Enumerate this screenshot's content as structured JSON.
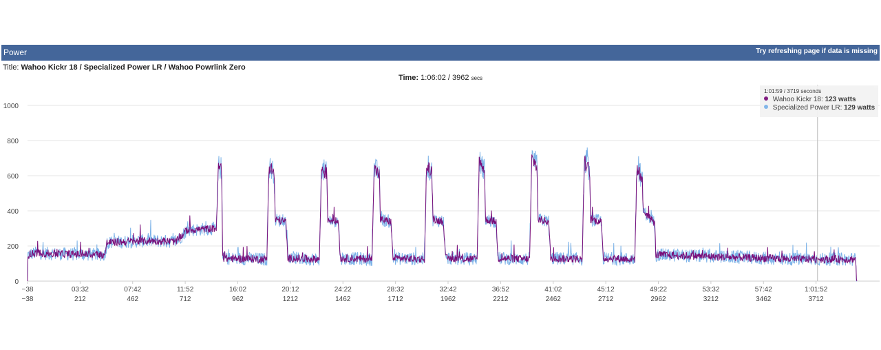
{
  "header": {
    "title": "Power",
    "note": "Try refreshing page if data is missing"
  },
  "ride": {
    "title_label": "Title:",
    "title_value": "Wahoo Kickr 18 / Specialized Power LR / Wahoo Powrlink Zero"
  },
  "time": {
    "label": "Time:",
    "value": "1:06:02",
    "separator": "/",
    "seconds": "3962",
    "unit": "secs"
  },
  "tooltip": {
    "time": "1:01:59",
    "seconds_text": "3719 seconds",
    "rows": [
      {
        "name": "Wahoo Kickr 18",
        "value": "123 watts",
        "color": "#7a0f7a"
      },
      {
        "name": "Specialized Power LR",
        "value": "129 watts",
        "color": "#7db3e8"
      }
    ]
  },
  "chart_data": {
    "type": "line",
    "ylim": [
      0,
      1000
    ],
    "xlim": [
      -38,
      3962
    ],
    "y_ticks": [
      0,
      200,
      400,
      600,
      800,
      1000
    ],
    "x_ticks": [
      {
        "sec": -38,
        "clock": "−38",
        "secs": "−38"
      },
      {
        "sec": 212,
        "clock": "03:32",
        "secs": "212"
      },
      {
        "sec": 462,
        "clock": "07:42",
        "secs": "462"
      },
      {
        "sec": 712,
        "clock": "11:52",
        "secs": "712"
      },
      {
        "sec": 962,
        "clock": "16:02",
        "secs": "962"
      },
      {
        "sec": 1212,
        "clock": "20:12",
        "secs": "1212"
      },
      {
        "sec": 1462,
        "clock": "24:22",
        "secs": "1462"
      },
      {
        "sec": 1712,
        "clock": "28:32",
        "secs": "1712"
      },
      {
        "sec": 1962,
        "clock": "32:42",
        "secs": "1962"
      },
      {
        "sec": 2212,
        "clock": "36:52",
        "secs": "2212"
      },
      {
        "sec": 2462,
        "clock": "41:02",
        "secs": "2462"
      },
      {
        "sec": 2712,
        "clock": "45:12",
        "secs": "2712"
      },
      {
        "sec": 2962,
        "clock": "49:22",
        "secs": "2962"
      },
      {
        "sec": 3212,
        "clock": "53:32",
        "secs": "3212"
      },
      {
        "sec": 3462,
        "clock": "57:42",
        "secs": "3462"
      },
      {
        "sec": 3712,
        "clock": "1:01:52",
        "secs": "3712"
      }
    ],
    "crosshair_sec": 3719,
    "series": [
      {
        "name": "Wahoo Kickr 18",
        "color": "#7a0f7a"
      },
      {
        "name": "Specialized Power LR",
        "color": "#7db3e8"
      }
    ],
    "profile": [
      [
        -38,
        0
      ],
      [
        -36,
        150
      ],
      [
        0,
        160
      ],
      [
        100,
        155
      ],
      [
        330,
        150
      ],
      [
        340,
        220
      ],
      [
        550,
        230
      ],
      [
        670,
        225
      ],
      [
        720,
        290
      ],
      [
        860,
        300
      ],
      [
        870,
        650
      ],
      [
        885,
        640
      ],
      [
        890,
        130
      ],
      [
        1100,
        125
      ],
      [
        1110,
        650
      ],
      [
        1135,
        620
      ],
      [
        1140,
        350
      ],
      [
        1190,
        340
      ],
      [
        1200,
        130
      ],
      [
        1350,
        125
      ],
      [
        1360,
        640
      ],
      [
        1385,
        610
      ],
      [
        1390,
        350
      ],
      [
        1440,
        340
      ],
      [
        1450,
        130
      ],
      [
        1600,
        125
      ],
      [
        1610,
        640
      ],
      [
        1635,
        610
      ],
      [
        1640,
        350
      ],
      [
        1690,
        340
      ],
      [
        1700,
        130
      ],
      [
        1850,
        125
      ],
      [
        1860,
        660
      ],
      [
        1885,
        620
      ],
      [
        1890,
        350
      ],
      [
        1940,
        340
      ],
      [
        1950,
        130
      ],
      [
        2100,
        125
      ],
      [
        2110,
        680
      ],
      [
        2135,
        640
      ],
      [
        2140,
        350
      ],
      [
        2190,
        340
      ],
      [
        2200,
        130
      ],
      [
        2350,
        125
      ],
      [
        2360,
        700
      ],
      [
        2385,
        650
      ],
      [
        2390,
        350
      ],
      [
        2440,
        340
      ],
      [
        2450,
        130
      ],
      [
        2600,
        125
      ],
      [
        2610,
        680
      ],
      [
        2635,
        630
      ],
      [
        2640,
        350
      ],
      [
        2690,
        340
      ],
      [
        2700,
        130
      ],
      [
        2850,
        125
      ],
      [
        2860,
        640
      ],
      [
        2885,
        590
      ],
      [
        2890,
        400
      ],
      [
        2945,
        330
      ],
      [
        2950,
        150
      ],
      [
        3600,
        125
      ],
      [
        3900,
        125
      ],
      [
        3905,
        0
      ]
    ]
  }
}
